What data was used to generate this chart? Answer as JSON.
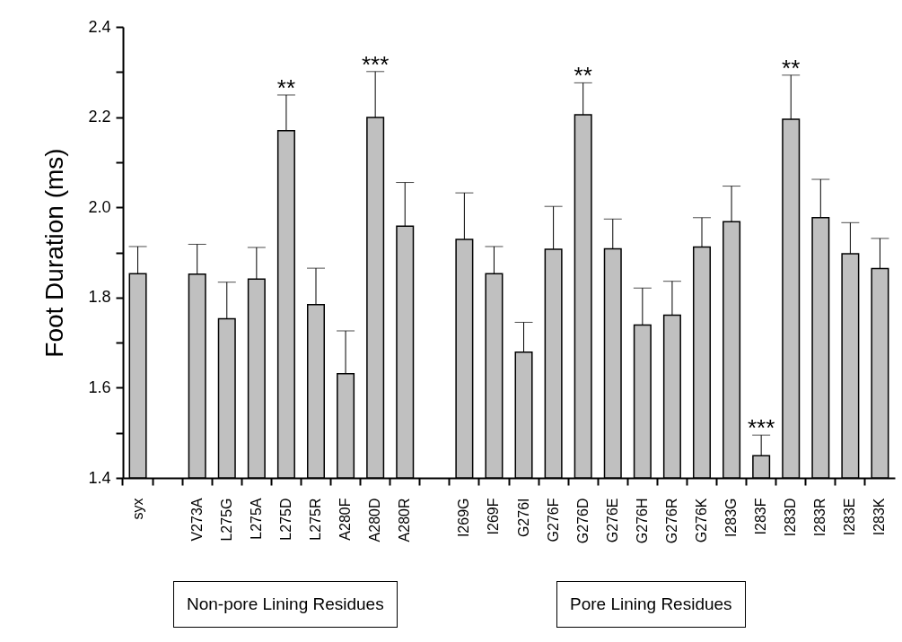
{
  "chart_data": {
    "type": "bar",
    "ylabel": "Foot Duration (ms)",
    "categories": [
      "syx",
      null,
      "V273A",
      "L275G",
      "L275A",
      "L275D",
      "L275R",
      "A280F",
      "A280D",
      "A280R",
      null,
      "I269G",
      "I269F",
      "G276I",
      "G276F",
      "G276D",
      "G276E",
      "G276H",
      "G276R",
      "G276K",
      "I283G",
      "I283F",
      "I283D",
      "I283R",
      "I283E",
      "I283K"
    ],
    "series": [
      {
        "color": "#c0c0c0",
        "values": [
          1.853,
          null,
          1.852,
          1.753,
          1.841,
          2.17,
          1.784,
          1.631,
          2.199,
          1.958,
          null,
          1.929,
          1.853,
          1.679,
          1.907,
          2.205,
          1.908,
          1.739,
          1.761,
          1.912,
          1.968,
          1.449,
          2.195,
          1.977,
          1.897,
          1.864
        ],
        "errors": [
          [
            1.853,
            1.913
          ],
          null,
          [
            1.852,
            1.918
          ],
          [
            1.753,
            1.834
          ],
          [
            1.841,
            1.911
          ],
          [
            2.17,
            2.249
          ],
          [
            1.784,
            1.865
          ],
          [
            1.631,
            1.726
          ],
          [
            2.199,
            2.301
          ],
          [
            1.958,
            2.055
          ],
          null,
          [
            1.929,
            2.032
          ],
          [
            1.853,
            1.913
          ],
          [
            1.679,
            1.745
          ],
          [
            1.907,
            2.002
          ],
          [
            2.205,
            2.276
          ],
          [
            1.908,
            1.974
          ],
          [
            1.739,
            1.821
          ],
          [
            1.761,
            1.836
          ],
          [
            1.912,
            1.977
          ],
          [
            1.968,
            2.047
          ],
          [
            1.449,
            1.495
          ],
          [
            2.195,
            2.293
          ],
          [
            1.977,
            2.062
          ],
          [
            1.897,
            1.966
          ],
          [
            1.864,
            1.931
          ]
        ]
      }
    ],
    "ylim": [
      1.4,
      2.4
    ],
    "yticks": [
      1.4,
      {
        "value": 1.5,
        "label": null
      },
      1.6,
      {
        "value": 1.7,
        "label": null
      },
      1.8,
      {
        "value": 1.9,
        "label": null
      },
      {
        "value": 2.0,
        "label": "2.0"
      },
      {
        "value": 2.1,
        "label": null
      },
      2.2,
      {
        "value": 2.3,
        "label": null
      },
      2.4
    ],
    "annotations": [
      {
        "text": "**",
        "x": "L275D",
        "y": 2.249
      },
      {
        "text": "***",
        "x": "A280D",
        "y": 2.301
      },
      {
        "text": "**",
        "x": "G276D",
        "y": 2.276
      },
      {
        "text": "***",
        "x": "I283F",
        "y": 1.495
      },
      {
        "text": "**",
        "x": "I283D",
        "y": 2.293
      },
      "Non-pore Lining Residues",
      "Pore Lining Residues"
    ]
  }
}
